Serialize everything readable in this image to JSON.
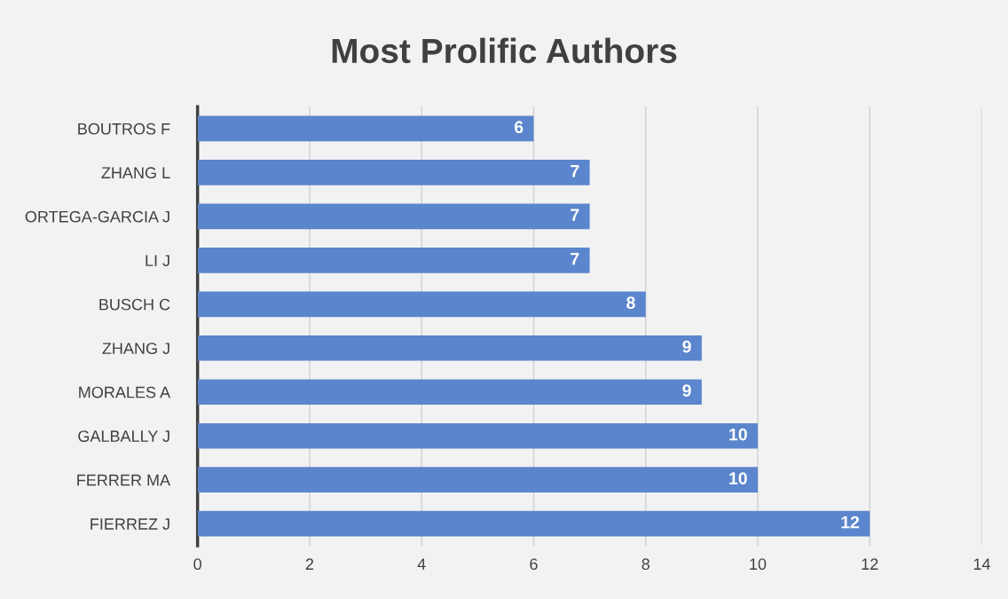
{
  "chart_data": {
    "type": "bar",
    "orientation": "horizontal",
    "title": "Most Prolific Authors",
    "categories": [
      "BOUTROS F",
      "ZHANG L",
      "ORTEGA-GARCIA J",
      "LI J",
      "BUSCH C",
      "ZHANG J",
      "MORALES A",
      "GALBALLY J",
      "FERRER MA",
      "FIERREZ J"
    ],
    "values": [
      6,
      7,
      7,
      7,
      8,
      9,
      9,
      10,
      10,
      12
    ],
    "color": "#5b85cc",
    "xlim": [
      0,
      14
    ],
    "xticks": [
      0,
      2,
      4,
      6,
      8,
      10,
      12,
      14
    ],
    "grid": "x",
    "data_labels": true
  }
}
